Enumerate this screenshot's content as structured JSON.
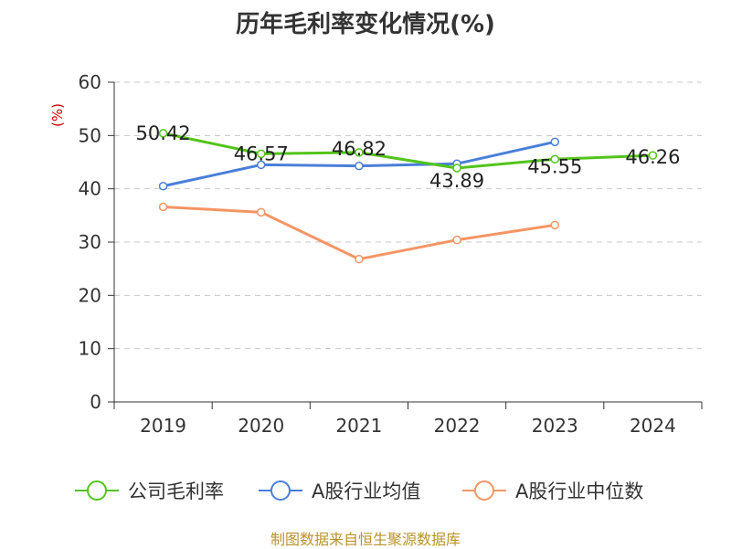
{
  "chart_data": {
    "type": "line",
    "title": "历年毛利率变化情况(%)",
    "ylabel": "(%)",
    "categories": [
      "2019",
      "2020",
      "2021",
      "2022",
      "2023",
      "2024"
    ],
    "ylim": [
      0,
      60
    ],
    "yticks": [
      0,
      10,
      20,
      30,
      40,
      50,
      60
    ],
    "grid": true,
    "legend_position": "bottom",
    "series": [
      {
        "name": "公司毛利率",
        "color": "#52c41a",
        "values": [
          50.42,
          46.57,
          46.82,
          43.89,
          45.55,
          46.26
        ],
        "labels": [
          "50.42",
          "46.57",
          "46.82",
          "43.89",
          "45.55",
          "46.26"
        ]
      },
      {
        "name": "A股行业均值",
        "color": "#4a7fd8",
        "values": [
          40.5,
          44.5,
          44.3,
          44.7,
          48.8,
          null
        ]
      },
      {
        "name": "A股行业中位数",
        "color": "#f59564",
        "values": [
          36.6,
          35.6,
          26.8,
          30.4,
          33.2,
          null
        ]
      }
    ]
  },
  "source": "制图数据来自恒生聚源数据库"
}
